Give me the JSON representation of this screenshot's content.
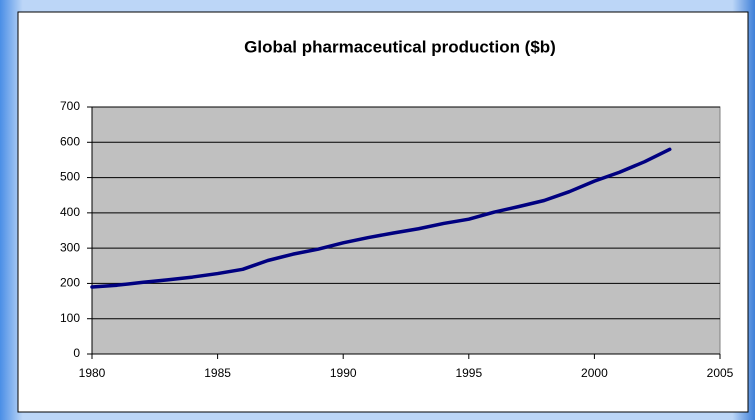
{
  "chart_data": {
    "type": "line",
    "title": "Global pharmaceutical production ($b)",
    "x": [
      1980,
      1981,
      1982,
      1983,
      1984,
      1985,
      1986,
      1987,
      1988,
      1989,
      1990,
      1991,
      1992,
      1993,
      1994,
      1995,
      1996,
      1997,
      1998,
      1999,
      2000,
      2001,
      2002,
      2003
    ],
    "values": [
      190,
      195,
      203,
      210,
      218,
      228,
      240,
      265,
      283,
      297,
      315,
      330,
      343,
      355,
      370,
      382,
      402,
      418,
      435,
      460,
      490,
      515,
      545,
      580
    ],
    "color": "#000080",
    "xlim": [
      1980,
      2005
    ],
    "xticks": [
      1980,
      1985,
      1990,
      1995,
      2000,
      2005
    ],
    "ylim": [
      0,
      700
    ],
    "yticks": [
      0,
      100,
      200,
      300,
      400,
      500,
      600,
      700
    ],
    "grid": true
  }
}
